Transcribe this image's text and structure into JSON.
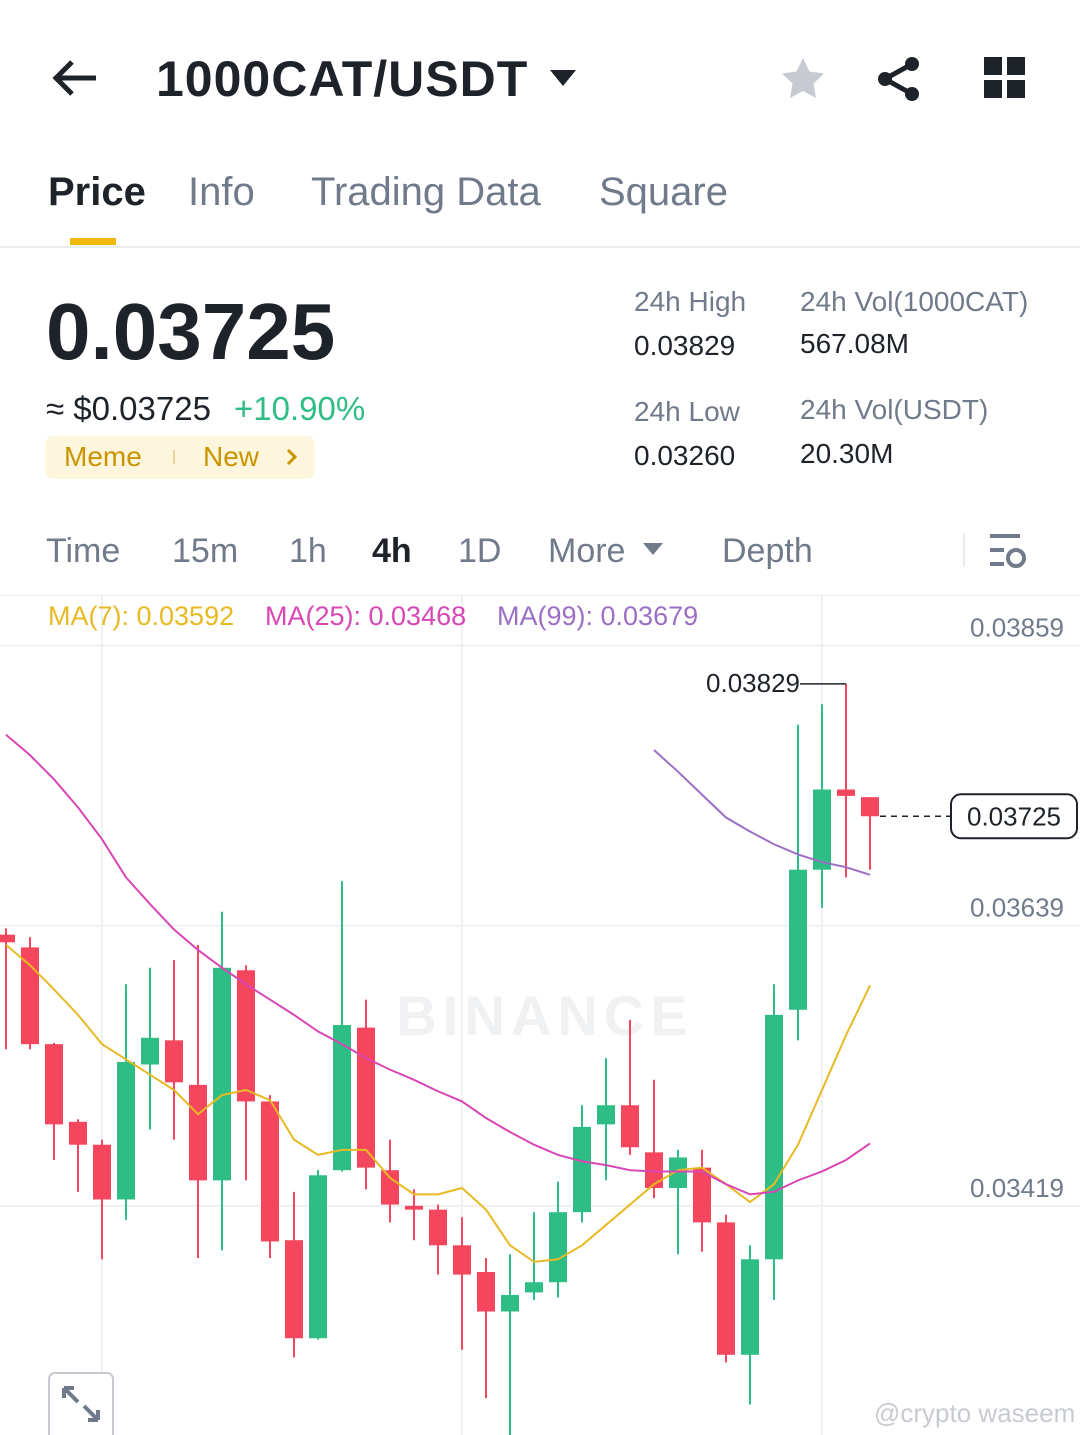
{
  "header": {
    "title": "1000CAT/USDT"
  },
  "tabs": [
    "Price",
    "Info",
    "Trading Data",
    "Square"
  ],
  "ticker": {
    "price": "0.03725",
    "approx": "≈ $0.03725",
    "change": "+10.90%",
    "tags": [
      "Meme",
      "New"
    ],
    "stats": [
      {
        "label": "24h High",
        "value": "0.03829"
      },
      {
        "label": "24h Vol(1000CAT)",
        "value": "567.08M"
      },
      {
        "label": "24h Low",
        "value": "0.03260"
      },
      {
        "label": "24h Vol(USDT)",
        "value": "20.30M"
      }
    ]
  },
  "intervals": [
    "Time",
    "15m",
    "1h",
    "4h",
    "1D",
    "More",
    "Depth"
  ],
  "chart_data": {
    "type": "candlestick",
    "ylim": [
      0.03239,
      0.03898
    ],
    "yticks": [
      0.03859,
      0.03639,
      0.03419
    ],
    "grid": true,
    "up_color": "#2ebd85",
    "down_color": "#f6465d",
    "open": [
      0.03632,
      0.03622,
      0.03546,
      0.03485,
      0.03467,
      0.03424,
      0.0353,
      0.03549,
      0.03514,
      0.03439,
      0.03604,
      0.03501,
      0.03392,
      0.03315,
      0.03447,
      0.03559,
      0.03447,
      0.03419,
      0.03416,
      0.03388,
      0.03367,
      0.03336,
      0.03351,
      0.03359,
      0.03414,
      0.03483,
      0.03498,
      0.03461,
      0.03433,
      0.03449,
      0.03406,
      0.03302,
      0.03377,
      0.03573,
      0.03683,
      0.03746,
      0.0374
    ],
    "high": [
      0.03637,
      0.0363,
      0.03547,
      0.03487,
      0.03471,
      0.03593,
      0.03606,
      0.03612,
      0.03624,
      0.0365,
      0.03608,
      0.03506,
      0.0343,
      0.03447,
      0.03674,
      0.03581,
      0.03471,
      0.03432,
      0.0342,
      0.0341,
      0.03378,
      0.03381,
      0.03414,
      0.03438,
      0.03498,
      0.03535,
      0.03565,
      0.03518,
      0.03463,
      0.03463,
      0.03412,
      0.03388,
      0.03593,
      0.03797,
      0.03813,
      0.03829,
      0.0374
    ],
    "low": [
      0.03542,
      0.03542,
      0.03455,
      0.0343,
      0.03377,
      0.03408,
      0.03479,
      0.03471,
      0.03378,
      0.03384,
      0.03439,
      0.03378,
      0.033,
      0.03314,
      0.03446,
      0.03432,
      0.03406,
      0.03392,
      0.03365,
      0.03306,
      0.03268,
      0.03239,
      0.03345,
      0.03347,
      0.03406,
      0.03439,
      0.03459,
      0.03425,
      0.03381,
      0.03383,
      0.03296,
      0.03263,
      0.03345,
      0.03549,
      0.03653,
      0.03677,
      0.03683
    ],
    "close": [
      0.03626,
      0.03546,
      0.03483,
      0.03467,
      0.03424,
      0.03532,
      0.03551,
      0.03516,
      0.03439,
      0.03606,
      0.03501,
      0.03391,
      0.03315,
      0.03443,
      0.03561,
      0.03449,
      0.0342,
      0.03416,
      0.03388,
      0.03365,
      0.03336,
      0.03349,
      0.03359,
      0.03414,
      0.03481,
      0.03498,
      0.03465,
      0.03433,
      0.03457,
      0.03406,
      0.03302,
      0.03377,
      0.03569,
      0.03683,
      0.03746,
      0.03741,
      0.03725
    ],
    "series": [
      {
        "name": "MA(7): 0.03592",
        "color": "#e8b923",
        "values": [
          0.03624,
          0.03608,
          0.03589,
          0.03569,
          0.03546,
          0.03534,
          0.03522,
          0.0351,
          0.03491,
          0.03506,
          0.0351,
          0.03502,
          0.03471,
          0.03459,
          0.03463,
          0.03463,
          0.03441,
          0.03428,
          0.03428,
          0.03433,
          0.03416,
          0.03388,
          0.03375,
          0.03377,
          0.03388,
          0.03404,
          0.0342,
          0.03436,
          0.03447,
          0.03449,
          0.03436,
          0.03422,
          0.03436,
          0.03467,
          0.0351,
          0.03553,
          0.03592
        ]
      },
      {
        "name": "MA(25): 0.03468",
        "color": "#d946b5",
        "values": [
          0.03789,
          0.03773,
          0.03754,
          0.03732,
          0.03707,
          0.03677,
          0.03656,
          0.03636,
          0.0362,
          0.03606,
          0.03593,
          0.03581,
          0.03569,
          0.03556,
          0.03546,
          0.03535,
          0.03526,
          0.03518,
          0.03509,
          0.03501,
          0.03488,
          0.03477,
          0.03467,
          0.03459,
          0.03454,
          0.03451,
          0.03447,
          0.03446,
          0.03446,
          0.03446,
          0.03436,
          0.03428,
          0.0343,
          0.03439,
          0.03446,
          0.03455,
          0.03468
        ]
      },
      {
        "name": "MA(99): 0.03679",
        "color": "#9b6fc4",
        "values": [
          null,
          null,
          null,
          null,
          null,
          null,
          null,
          null,
          null,
          null,
          null,
          null,
          null,
          null,
          null,
          null,
          null,
          null,
          null,
          null,
          null,
          null,
          null,
          null,
          null,
          null,
          null,
          0.03777,
          0.0376,
          0.03742,
          0.03724,
          0.03713,
          0.03703,
          0.03695,
          0.03689,
          0.03685,
          0.03679
        ]
      }
    ],
    "high_mark": 0.03829,
    "last_price": 0.03725,
    "watermark": "BINANCE"
  },
  "footer": {
    "credit": "@crypto waseem"
  }
}
